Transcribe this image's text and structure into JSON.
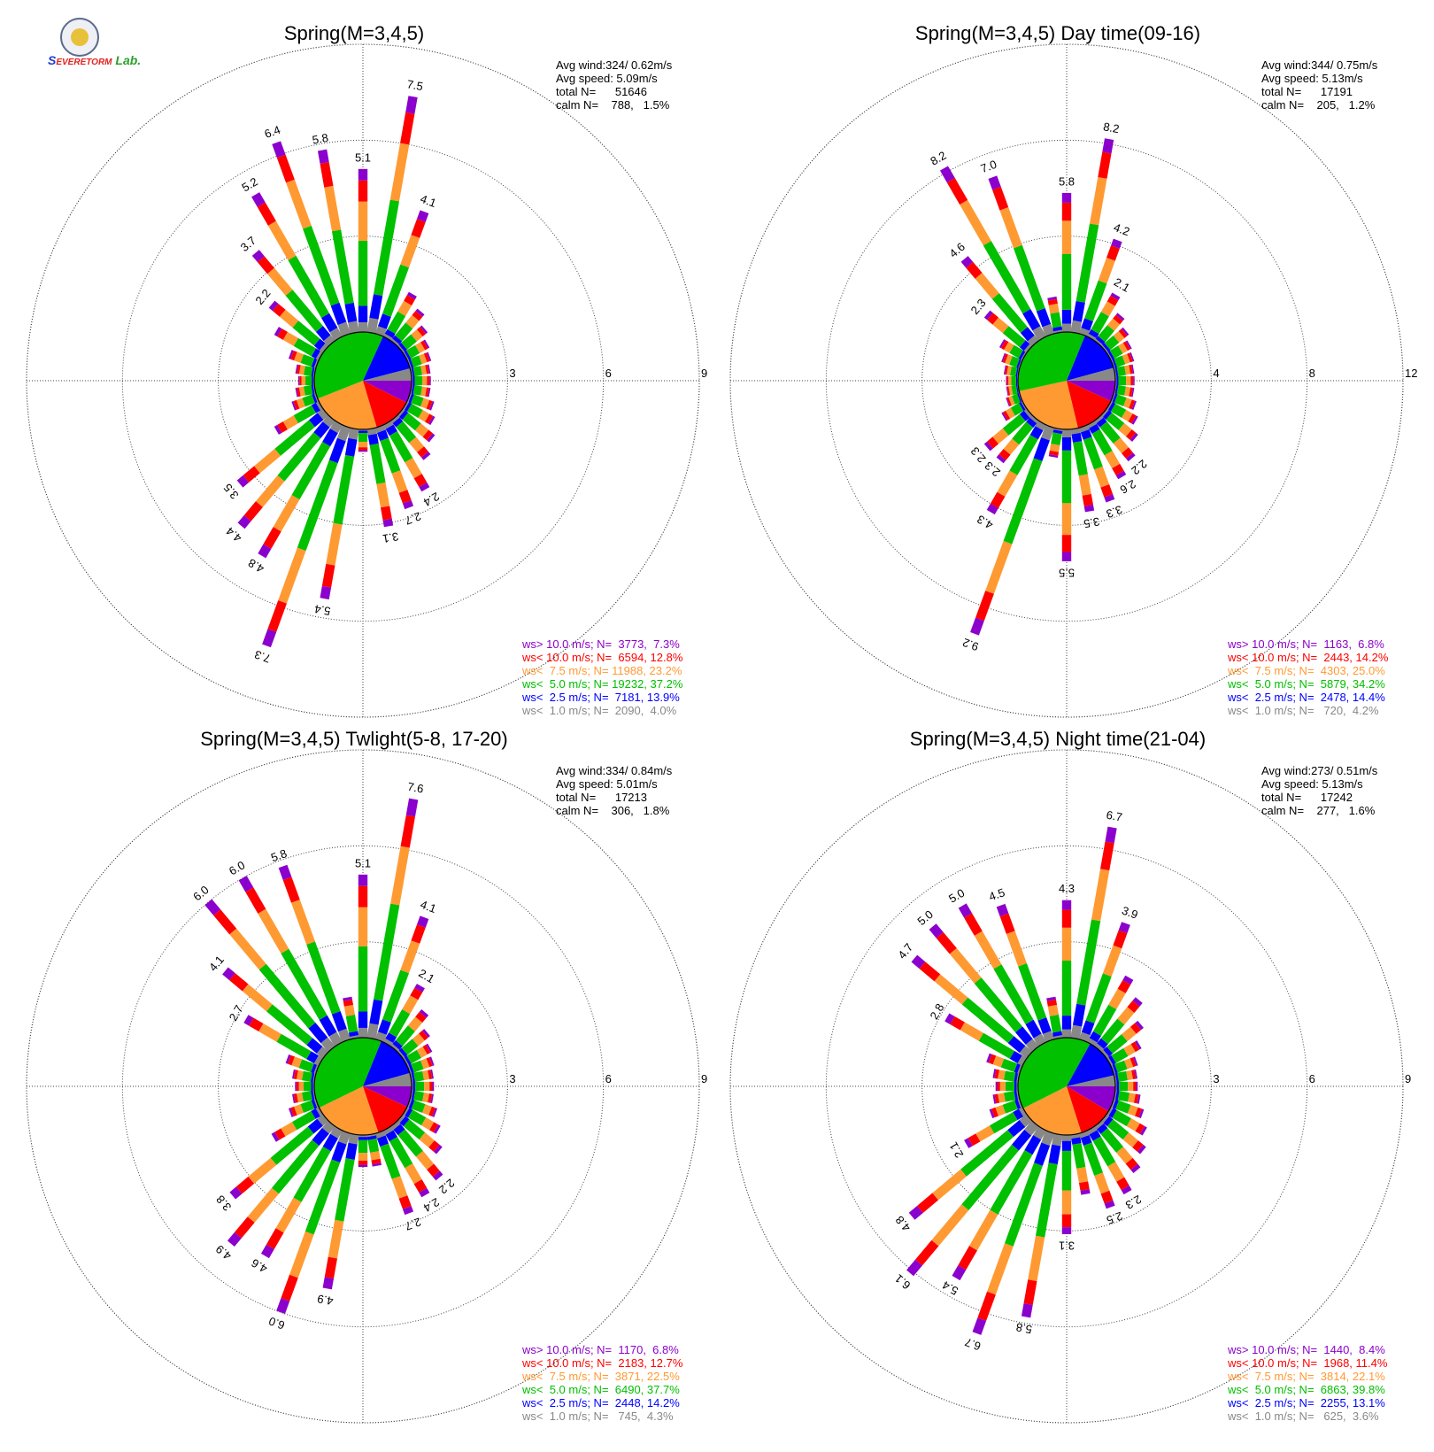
{
  "logo": {
    "text_s": "S",
    "text_evere": "EVERE",
    "text_storm": "TORM",
    "text_lab": "Lab."
  },
  "colors": {
    "gt10": "#8b00cc",
    "lt10": "#ff0000",
    "lt75": "#ff9a33",
    "lt50": "#00c000",
    "lt25": "#0000ff",
    "lt10c": "#888888",
    "grid": "#444444"
  },
  "chart_data": [
    {
      "type": "windrose",
      "title": "Spring(M=3,4,5)",
      "rings": [
        3,
        6,
        9
      ],
      "stats": [
        "Avg wind:324/ 0.62m/s",
        "Avg speed: 5.09m/s",
        "total N=      51646",
        "calm N=    788,   1.5%"
      ],
      "legend": [
        "ws> 10.0 m/s; N=  3773,  7.3%",
        "ws< 10.0 m/s; N=  6594, 12.8%",
        "ws<  7.5 m/s; N= 11988, 23.2%",
        "ws<  5.0 m/s; N= 19232, 37.2%",
        "ws<  2.5 m/s; N=  7181, 13.9%",
        "ws<  1.0 m/s; N=  2090,  4.0%"
      ],
      "pie": [
        7.3,
        12.8,
        23.2,
        37.2,
        13.9,
        4.0
      ],
      "bars": [
        {
          "dir": 0,
          "value": 5.1,
          "label": "5.1"
        },
        {
          "dir": 10,
          "value": 7.5,
          "label": "7.5"
        },
        {
          "dir": 20,
          "value": 4.1,
          "label": "4.1"
        },
        {
          "dir": 30,
          "value": 1.6
        },
        {
          "dir": 40,
          "value": 1.3
        },
        {
          "dir": 50,
          "value": 1.0
        },
        {
          "dir": 60,
          "value": 0.8
        },
        {
          "dir": 70,
          "value": 0.7
        },
        {
          "dir": 80,
          "value": 0.6
        },
        {
          "dir": 90,
          "value": 0.6
        },
        {
          "dir": 100,
          "value": 0.6
        },
        {
          "dir": 110,
          "value": 0.8
        },
        {
          "dir": 120,
          "value": 1.0
        },
        {
          "dir": 130,
          "value": 1.3
        },
        {
          "dir": 140,
          "value": 1.6
        },
        {
          "dir": 150,
          "value": 2.4,
          "label": "2.4"
        },
        {
          "dir": 160,
          "value": 2.7,
          "label": "2.7"
        },
        {
          "dir": 170,
          "value": 3.1,
          "label": "3.1"
        },
        {
          "dir": 180,
          "value": 0.7
        },
        {
          "dir": 190,
          "value": 5.4,
          "label": "5.4"
        },
        {
          "dir": 200,
          "value": 7.3,
          "label": "7.3"
        },
        {
          "dir": 210,
          "value": 4.8,
          "label": "4.8"
        },
        {
          "dir": 220,
          "value": 4.4,
          "label": "4.4"
        },
        {
          "dir": 230,
          "value": 3.5,
          "label": "3.5"
        },
        {
          "dir": 240,
          "value": 1.6
        },
        {
          "dir": 250,
          "value": 0.8
        },
        {
          "dir": 260,
          "value": 0.6
        },
        {
          "dir": 270,
          "value": 0.5
        },
        {
          "dir": 280,
          "value": 0.6
        },
        {
          "dir": 290,
          "value": 0.9
        },
        {
          "dir": 300,
          "value": 1.6
        },
        {
          "dir": 310,
          "value": 2.2,
          "label": "2.2"
        },
        {
          "dir": 320,
          "value": 3.7,
          "label": "3.7"
        },
        {
          "dir": 330,
          "value": 5.2,
          "label": "5.2"
        },
        {
          "dir": 340,
          "value": 6.4,
          "label": "6.4"
        },
        {
          "dir": 350,
          "value": 5.8,
          "label": "5.8"
        }
      ]
    },
    {
      "type": "windrose",
      "title": "Spring(M=3,4,5) Day time(09-16)",
      "rings": [
        4,
        8,
        12
      ],
      "stats": [
        "Avg wind:344/ 0.75m/s",
        "Avg speed: 5.13m/s",
        "total N=      17191",
        "calm N=    205,   1.2%"
      ],
      "legend": [
        "ws> 10.0 m/s; N=  1163,  6.8%",
        "ws< 10.0 m/s; N=  2443, 14.2%",
        "ws<  7.5 m/s; N=  4303, 25.0%",
        "ws<  5.0 m/s; N=  5879, 34.2%",
        "ws<  2.5 m/s; N=  2478, 14.4%",
        "ws<  1.0 m/s; N=   720,  4.2%"
      ],
      "pie": [
        6.8,
        14.2,
        25.0,
        34.2,
        14.4,
        4.2
      ],
      "bars": [
        {
          "dir": 0,
          "value": 5.8,
          "label": "5.8"
        },
        {
          "dir": 10,
          "value": 8.2,
          "label": "8.2"
        },
        {
          "dir": 20,
          "value": 4.2,
          "label": "4.2"
        },
        {
          "dir": 30,
          "value": 2.1,
          "label": "2.1"
        },
        {
          "dir": 40,
          "value": 1.5
        },
        {
          "dir": 50,
          "value": 1.2
        },
        {
          "dir": 60,
          "value": 1.0
        },
        {
          "dir": 70,
          "value": 0.9
        },
        {
          "dir": 80,
          "value": 0.8
        },
        {
          "dir": 90,
          "value": 0.8
        },
        {
          "dir": 100,
          "value": 0.8
        },
        {
          "dir": 110,
          "value": 1.0
        },
        {
          "dir": 120,
          "value": 1.3
        },
        {
          "dir": 130,
          "value": 1.7
        },
        {
          "dir": 140,
          "value": 2.2,
          "label": "2.2"
        },
        {
          "dir": 150,
          "value": 2.6,
          "label": "2.6"
        },
        {
          "dir": 160,
          "value": 3.3,
          "label": "3.3"
        },
        {
          "dir": 170,
          "value": 3.5,
          "label": "3.5"
        },
        {
          "dir": 180,
          "value": 5.5,
          "label": "5.5"
        },
        {
          "dir": 190,
          "value": 1.2
        },
        {
          "dir": 200,
          "value": 9.2,
          "label": "9.2"
        },
        {
          "dir": 210,
          "value": 4.3,
          "label": "4.3"
        },
        {
          "dir": 220,
          "value": 2.3,
          "label": "2.3"
        },
        {
          "dir": 230,
          "value": 2.3,
          "label": "2.3"
        },
        {
          "dir": 240,
          "value": 1.0
        },
        {
          "dir": 250,
          "value": 0.6
        },
        {
          "dir": 260,
          "value": 0.5
        },
        {
          "dir": 270,
          "value": 0.5
        },
        {
          "dir": 280,
          "value": 0.6
        },
        {
          "dir": 290,
          "value": 0.8
        },
        {
          "dir": 300,
          "value": 1.1
        },
        {
          "dir": 310,
          "value": 2.3,
          "label": "2.3"
        },
        {
          "dir": 320,
          "value": 4.6,
          "label": "4.6"
        },
        {
          "dir": 330,
          "value": 8.2,
          "label": "8.2"
        },
        {
          "dir": 340,
          "value": 7.0,
          "label": "7.0"
        },
        {
          "dir": 350,
          "value": 1.5
        }
      ]
    },
    {
      "type": "windrose",
      "title": "Spring(M=3,4,5) Twlight(5-8, 17-20)",
      "rings": [
        3,
        6,
        9
      ],
      "stats": [
        "Avg wind:334/ 0.84m/s",
        "Avg speed: 5.01m/s",
        "total N=      17213",
        "calm N=    306,   1.8%"
      ],
      "legend": [
        "ws> 10.0 m/s; N=  1170,  6.8%",
        "ws< 10.0 m/s; N=  2183, 12.7%",
        "ws<  7.5 m/s; N=  3871, 22.5%",
        "ws<  5.0 m/s; N=  6490, 37.7%",
        "ws<  2.5 m/s; N=  2448, 14.2%",
        "ws<  1.0 m/s; N=   745,  4.3%"
      ],
      "pie": [
        6.8,
        12.7,
        22.5,
        37.7,
        14.2,
        4.3
      ],
      "bars": [
        {
          "dir": 0,
          "value": 5.1,
          "label": "5.1"
        },
        {
          "dir": 10,
          "value": 7.6,
          "label": "7.6"
        },
        {
          "dir": 20,
          "value": 4.1,
          "label": "4.1"
        },
        {
          "dir": 30,
          "value": 2.1,
          "label": "2.1"
        },
        {
          "dir": 40,
          "value": 1.5
        },
        {
          "dir": 50,
          "value": 1.1
        },
        {
          "dir": 60,
          "value": 0.9
        },
        {
          "dir": 70,
          "value": 0.8
        },
        {
          "dir": 80,
          "value": 0.7
        },
        {
          "dir": 90,
          "value": 0.7
        },
        {
          "dir": 100,
          "value": 0.7
        },
        {
          "dir": 110,
          "value": 0.9
        },
        {
          "dir": 120,
          "value": 1.2
        },
        {
          "dir": 130,
          "value": 1.6
        },
        {
          "dir": 140,
          "value": 2.2,
          "label": "2.2"
        },
        {
          "dir": 150,
          "value": 2.4,
          "label": "2.4"
        },
        {
          "dir": 160,
          "value": 2.7,
          "label": "2.7"
        },
        {
          "dir": 170,
          "value": 1.0
        },
        {
          "dir": 180,
          "value": 1.0
        },
        {
          "dir": 190,
          "value": 4.9,
          "label": "4.9"
        },
        {
          "dir": 200,
          "value": 6.0,
          "label": "6.0"
        },
        {
          "dir": 210,
          "value": 4.6,
          "label": "4.6"
        },
        {
          "dir": 220,
          "value": 4.9,
          "label": "4.9"
        },
        {
          "dir": 230,
          "value": 3.8,
          "label": "3.8"
        },
        {
          "dir": 240,
          "value": 1.7
        },
        {
          "dir": 250,
          "value": 0.9
        },
        {
          "dir": 260,
          "value": 0.7
        },
        {
          "dir": 270,
          "value": 0.6
        },
        {
          "dir": 280,
          "value": 0.7
        },
        {
          "dir": 290,
          "value": 1.0
        },
        {
          "dir": 300,
          "value": 2.7,
          "label": "2.7"
        },
        {
          "dir": 310,
          "value": 4.1,
          "label": "4.1"
        },
        {
          "dir": 320,
          "value": 6.0,
          "label": "6.0"
        },
        {
          "dir": 330,
          "value": 6.0,
          "label": "6.0"
        },
        {
          "dir": 340,
          "value": 5.8,
          "label": "5.8"
        },
        {
          "dir": 350,
          "value": 1.3
        }
      ]
    },
    {
      "type": "windrose",
      "title": "Spring(M=3,4,5) Night time(21-04)",
      "rings": [
        3,
        6,
        9
      ],
      "stats": [
        "Avg wind:273/ 0.51m/s",
        "Avg speed: 5.13m/s",
        "total N=      17242",
        "calm N=    277,   1.6%"
      ],
      "legend": [
        "ws> 10.0 m/s; N=  1440,  8.4%",
        "ws< 10.0 m/s; N=  1968, 11.4%",
        "ws<  7.5 m/s; N=  3814, 22.1%",
        "ws<  5.0 m/s; N=  6863, 39.8%",
        "ws<  2.5 m/s; N=  2255, 13.1%",
        "ws<  1.0 m/s; N=   625,  3.6%"
      ],
      "pie": [
        8.4,
        11.4,
        22.1,
        39.8,
        13.1,
        3.6
      ],
      "bars": [
        {
          "dir": 0,
          "value": 4.3,
          "label": "4.3"
        },
        {
          "dir": 10,
          "value": 6.7,
          "label": "6.7"
        },
        {
          "dir": 20,
          "value": 3.9,
          "label": "3.9"
        },
        {
          "dir": 30,
          "value": 2.4
        },
        {
          "dir": 40,
          "value": 2.0
        },
        {
          "dir": 50,
          "value": 1.5
        },
        {
          "dir": 60,
          "value": 1.1
        },
        {
          "dir": 70,
          "value": 0.8
        },
        {
          "dir": 80,
          "value": 0.7
        },
        {
          "dir": 90,
          "value": 0.7
        },
        {
          "dir": 100,
          "value": 0.8
        },
        {
          "dir": 110,
          "value": 1.0
        },
        {
          "dir": 120,
          "value": 1.3
        },
        {
          "dir": 130,
          "value": 1.6
        },
        {
          "dir": 140,
          "value": 1.9
        },
        {
          "dir": 150,
          "value": 2.3,
          "label": "2.3"
        },
        {
          "dir": 160,
          "value": 2.5,
          "label": "2.5"
        },
        {
          "dir": 170,
          "value": 1.9
        },
        {
          "dir": 180,
          "value": 3.1,
          "label": "3.1"
        },
        {
          "dir": 190,
          "value": 5.8,
          "label": "5.8"
        },
        {
          "dir": 200,
          "value": 6.7,
          "label": "6.7"
        },
        {
          "dir": 210,
          "value": 5.4,
          "label": "5.4"
        },
        {
          "dir": 220,
          "value": 6.1,
          "label": "6.1"
        },
        {
          "dir": 230,
          "value": 4.8,
          "label": "4.8"
        },
        {
          "dir": 240,
          "value": 2.1,
          "label": "2.1"
        },
        {
          "dir": 250,
          "value": 1.0
        },
        {
          "dir": 260,
          "value": 0.8
        },
        {
          "dir": 270,
          "value": 0.7
        },
        {
          "dir": 280,
          "value": 0.8
        },
        {
          "dir": 290,
          "value": 1.1
        },
        {
          "dir": 300,
          "value": 2.8,
          "label": "2.8"
        },
        {
          "dir": 310,
          "value": 4.7,
          "label": "4.7"
        },
        {
          "dir": 320,
          "value": 5.0,
          "label": "5.0"
        },
        {
          "dir": 330,
          "value": 5.0,
          "label": "5.0"
        },
        {
          "dir": 340,
          "value": 4.5,
          "label": "4.5"
        },
        {
          "dir": 350,
          "value": 1.3
        }
      ]
    }
  ]
}
